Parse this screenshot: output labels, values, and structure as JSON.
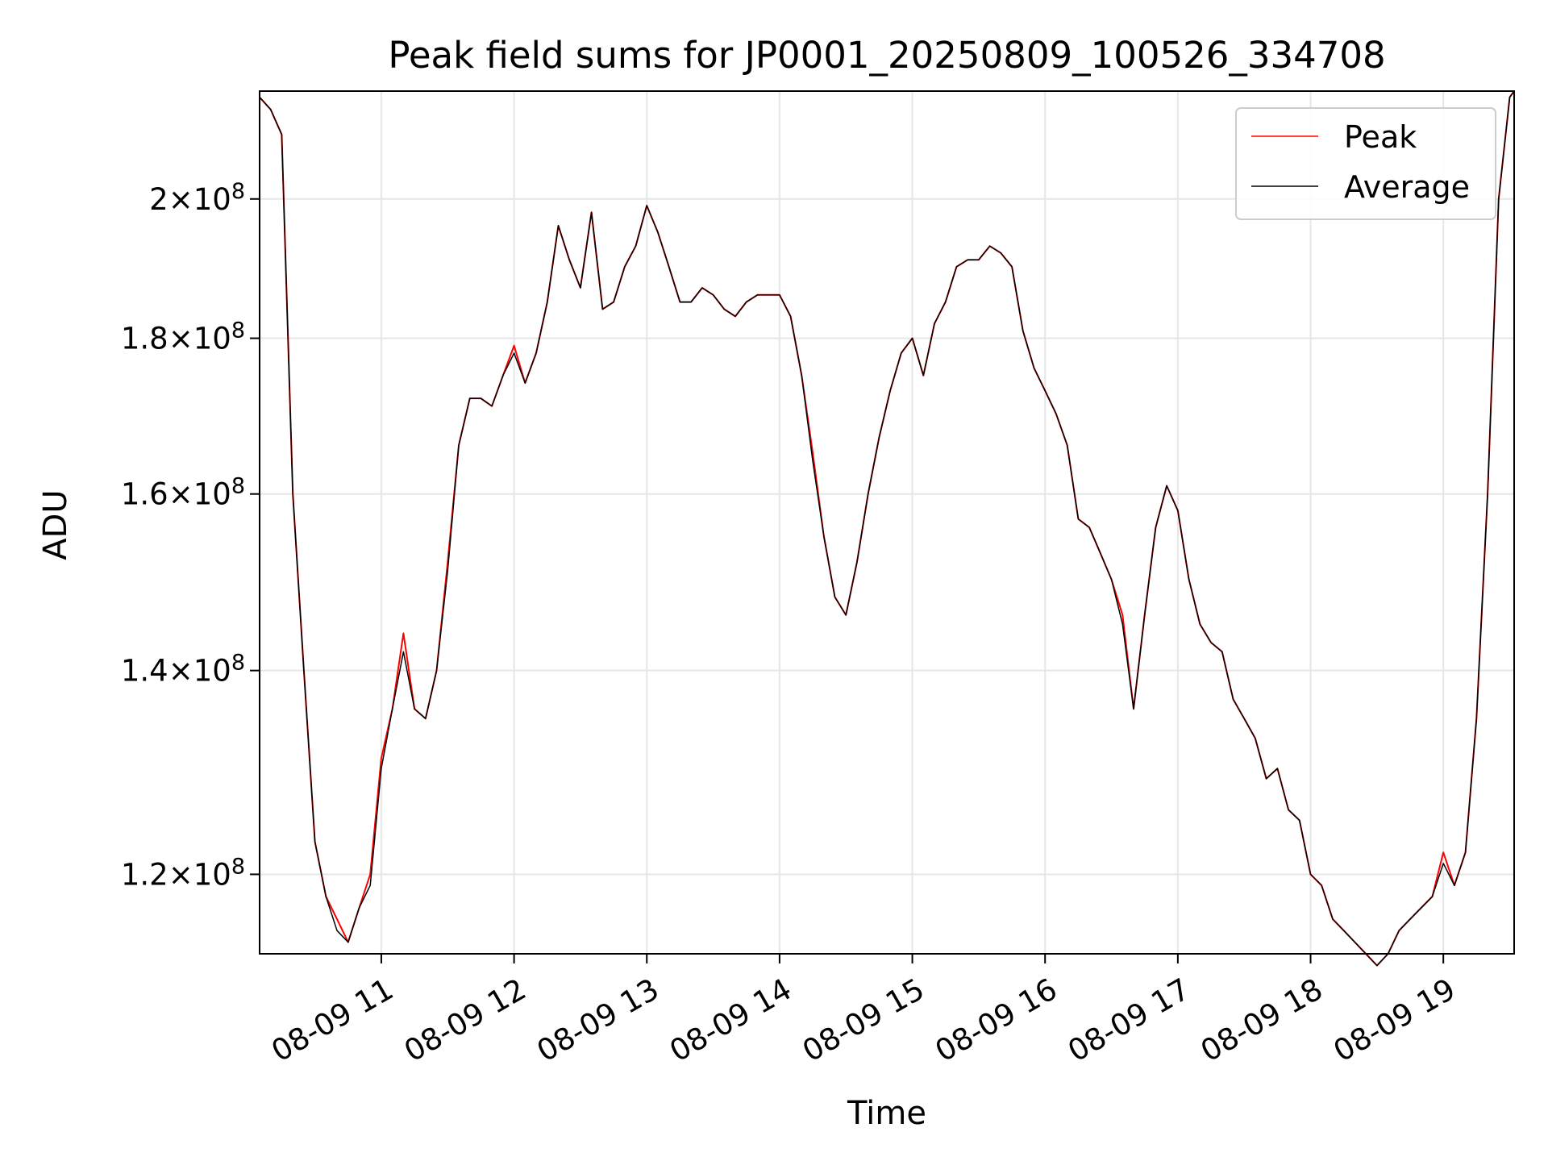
{
  "chart_data": {
    "type": "line",
    "title": "Peak field sums for JP0001_20250809_100526_334708",
    "xlabel": "Time",
    "ylabel": "ADU",
    "y_scale": "log",
    "xlim": [
      "2025-08-09 10:05",
      "2025-08-09 19:32"
    ],
    "ylim": [
      113000000,
      217000000
    ],
    "x_ticks": [
      "08-09 11",
      "08-09 12",
      "08-09 13",
      "08-09 14",
      "08-09 15",
      "08-09 16",
      "08-09 17",
      "08-09 18",
      "08-09 19"
    ],
    "x_tick_values": [
      "2025-08-09 11:00",
      "2025-08-09 12:00",
      "2025-08-09 13:00",
      "2025-08-09 14:00",
      "2025-08-09 15:00",
      "2025-08-09 16:00",
      "2025-08-09 17:00",
      "2025-08-09 18:00",
      "2025-08-09 19:00"
    ],
    "y_ticks": [
      120000000,
      140000000,
      160000000,
      180000000,
      200000000
    ],
    "y_tick_labels": [
      {
        "mantissa": "1.2",
        "exp": "8"
      },
      {
        "mantissa": "1.4",
        "exp": "8"
      },
      {
        "mantissa": "1.6",
        "exp": "8"
      },
      {
        "mantissa": "1.8",
        "exp": "8"
      },
      {
        "mantissa": "2",
        "exp": "8"
      }
    ],
    "grid": true,
    "legend": "upper right",
    "series": [
      {
        "name": "Peak",
        "color": "#ff0000",
        "x": [
          "10:05",
          "10:10",
          "10:15",
          "10:20",
          "10:25",
          "10:30",
          "10:35",
          "10:40",
          "10:45",
          "10:50",
          "10:55",
          "11:00",
          "11:05",
          "11:10",
          "11:15",
          "11:20",
          "11:25",
          "11:30",
          "11:35",
          "11:40",
          "11:45",
          "11:50",
          "11:55",
          "12:00",
          "12:05",
          "12:10",
          "12:15",
          "12:20",
          "12:25",
          "12:30",
          "12:35",
          "12:40",
          "12:45",
          "12:50",
          "12:55",
          "13:00",
          "13:05",
          "13:10",
          "13:15",
          "13:20",
          "13:25",
          "13:30",
          "13:35",
          "13:40",
          "13:45",
          "13:50",
          "13:55",
          "14:00",
          "14:05",
          "14:10",
          "14:15",
          "14:20",
          "14:25",
          "14:30",
          "14:35",
          "14:40",
          "14:45",
          "14:50",
          "14:55",
          "15:00",
          "15:05",
          "15:10",
          "15:15",
          "15:20",
          "15:25",
          "15:30",
          "15:35",
          "15:40",
          "15:45",
          "15:50",
          "15:55",
          "16:00",
          "16:05",
          "16:10",
          "16:15",
          "16:20",
          "16:25",
          "16:30",
          "16:35",
          "16:40",
          "16:45",
          "16:50",
          "16:55",
          "17:00",
          "17:05",
          "17:10",
          "17:15",
          "17:20",
          "17:25",
          "17:30",
          "17:35",
          "17:40",
          "17:45",
          "17:50",
          "17:55",
          "18:00",
          "18:05",
          "18:10",
          "18:15",
          "18:20",
          "18:25",
          "18:30",
          "18:35",
          "18:40",
          "18:45",
          "18:50",
          "18:55",
          "19:00",
          "19:05",
          "19:10",
          "19:15",
          "19:20",
          "19:25",
          "19:30",
          "19:32"
        ],
        "values": [
          216,
          214,
          210,
          160,
          140,
          123,
          118,
          116,
          114,
          117,
          120,
          131,
          136,
          144,
          136,
          135,
          140,
          152,
          166,
          172,
          172,
          171,
          175,
          179,
          174,
          178,
          185,
          196,
          191,
          187,
          198,
          184,
          185,
          190,
          193,
          199,
          195,
          190,
          185,
          185,
          187,
          186,
          184,
          183,
          185,
          186,
          186,
          186,
          183,
          175,
          165,
          155,
          148,
          146,
          152,
          160,
          167,
          173,
          178,
          180,
          175,
          182,
          185,
          190,
          191,
          191,
          193,
          192,
          190,
          181,
          176,
          173,
          170,
          166,
          157,
          156,
          153,
          150,
          146,
          136,
          146,
          156,
          161,
          158,
          150,
          145,
          143,
          142,
          137,
          135,
          133,
          129,
          130,
          126,
          125,
          120,
          119,
          116,
          115,
          114,
          113,
          112,
          113,
          115,
          116,
          117,
          118,
          122,
          119,
          122,
          135,
          160,
          200,
          216,
          217
        ]
      },
      {
        "name": "Average",
        "color": "#000000",
        "x": [
          "10:05",
          "10:10",
          "10:15",
          "10:20",
          "10:25",
          "10:30",
          "10:35",
          "10:40",
          "10:45",
          "10:50",
          "10:55",
          "11:00",
          "11:05",
          "11:10",
          "11:15",
          "11:20",
          "11:25",
          "11:30",
          "11:35",
          "11:40",
          "11:45",
          "11:50",
          "11:55",
          "12:00",
          "12:05",
          "12:10",
          "12:15",
          "12:20",
          "12:25",
          "12:30",
          "12:35",
          "12:40",
          "12:45",
          "12:50",
          "12:55",
          "13:00",
          "13:05",
          "13:10",
          "13:15",
          "13:20",
          "13:25",
          "13:30",
          "13:35",
          "13:40",
          "13:45",
          "13:50",
          "13:55",
          "14:00",
          "14:05",
          "14:10",
          "14:15",
          "14:20",
          "14:25",
          "14:30",
          "14:35",
          "14:40",
          "14:45",
          "14:50",
          "14:55",
          "15:00",
          "15:05",
          "15:10",
          "15:15",
          "15:20",
          "15:25",
          "15:30",
          "15:35",
          "15:40",
          "15:45",
          "15:50",
          "15:55",
          "16:00",
          "16:05",
          "16:10",
          "16:15",
          "16:20",
          "16:25",
          "16:30",
          "16:35",
          "16:40",
          "16:45",
          "16:50",
          "16:55",
          "17:00",
          "17:05",
          "17:10",
          "17:15",
          "17:20",
          "17:25",
          "17:30",
          "17:35",
          "17:40",
          "17:45",
          "17:50",
          "17:55",
          "18:00",
          "18:05",
          "18:10",
          "18:15",
          "18:20",
          "18:25",
          "18:30",
          "18:35",
          "18:40",
          "18:45",
          "18:50",
          "18:55",
          "19:00",
          "19:05",
          "19:10",
          "19:15",
          "19:20",
          "19:25",
          "19:30",
          "19:32"
        ],
        "values": [
          216,
          214,
          210,
          160,
          140,
          123,
          118,
          115,
          114,
          117,
          119,
          130,
          136,
          142,
          136,
          135,
          140,
          151,
          166,
          172,
          172,
          171,
          175,
          178,
          174,
          178,
          185,
          196,
          191,
          187,
          198,
          184,
          185,
          190,
          193,
          199,
          195,
          190,
          185,
          185,
          187,
          186,
          184,
          183,
          185,
          186,
          186,
          186,
          183,
          175,
          164,
          155,
          148,
          146,
          152,
          160,
          167,
          173,
          178,
          180,
          175,
          182,
          185,
          190,
          191,
          191,
          193,
          192,
          190,
          181,
          176,
          173,
          170,
          166,
          157,
          156,
          153,
          150,
          145,
          136,
          146,
          156,
          161,
          158,
          150,
          145,
          143,
          142,
          137,
          135,
          133,
          129,
          130,
          126,
          125,
          120,
          119,
          116,
          115,
          114,
          113,
          112,
          113,
          115,
          116,
          117,
          118,
          121,
          119,
          122,
          135,
          160,
          200,
          216,
          217
        ]
      }
    ]
  }
}
